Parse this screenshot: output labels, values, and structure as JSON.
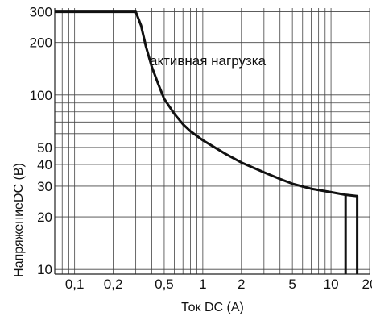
{
  "chart_data": {
    "type": "line",
    "xlabel": "Ток DC (A)",
    "ylabel": "НапряжениеDC (В)",
    "x_scale": "log",
    "y_scale": "log",
    "xlim": [
      0.07,
      20
    ],
    "ylim": [
      9.4,
      315
    ],
    "grid": true,
    "x_ticks": [
      {
        "v": 0.1,
        "label": "0,1"
      },
      {
        "v": 0.2,
        "label": "0,2"
      },
      {
        "v": 0.5,
        "label": "0,5"
      },
      {
        "v": 1,
        "label": "1"
      },
      {
        "v": 2,
        "label": "2"
      },
      {
        "v": 5,
        "label": "5"
      },
      {
        "v": 10,
        "label": "10"
      },
      {
        "v": 20,
        "label": "20"
      }
    ],
    "y_ticks": [
      {
        "v": 10,
        "label": "10"
      },
      {
        "v": 20,
        "label": "20"
      },
      {
        "v": 30,
        "label": "30"
      },
      {
        "v": 40,
        "label": "40"
      },
      {
        "v": 50,
        "label": "50"
      },
      {
        "v": 100,
        "label": "100"
      },
      {
        "v": 200,
        "label": "200"
      },
      {
        "v": 300,
        "label": "300"
      }
    ],
    "annotation": "активная нагрузка",
    "series": [
      {
        "x": [
          0.07,
          0.3,
          0.33,
          0.36,
          0.4,
          0.45,
          0.5,
          0.6,
          0.7,
          0.8,
          1,
          1.5,
          2,
          3,
          4,
          5,
          7,
          10,
          13,
          16,
          16,
          16
        ],
        "y": [
          300,
          300,
          250,
          190,
          145,
          115,
          95,
          78,
          68,
          62,
          55,
          46,
          41,
          36,
          33,
          31,
          29,
          27.7,
          26.8,
          26.3,
          18,
          9.4
        ]
      },
      {
        "x": [
          13,
          13
        ],
        "y": [
          26.8,
          9.4
        ]
      }
    ]
  }
}
